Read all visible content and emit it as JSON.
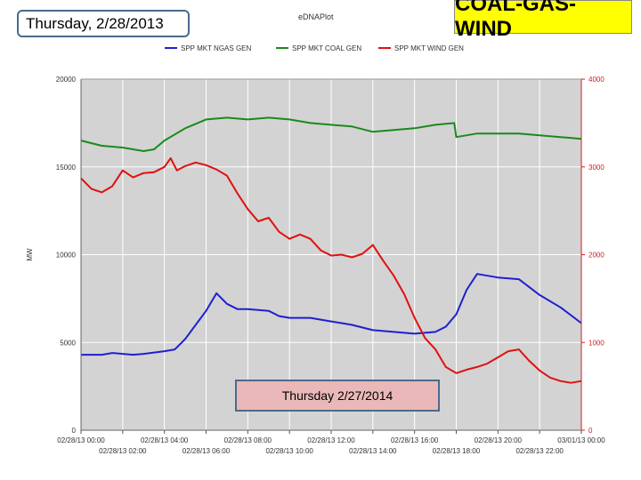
{
  "header": {
    "date_box": "Thursday, 2/28/2013",
    "app_title": "eDNAPlot",
    "banner": "COAL-GAS-WIND",
    "callout": "Thursday 2/27/2014"
  },
  "colors": {
    "plot_bg": "#d3d3d3",
    "gas": "#1f1fd0",
    "coal": "#1a8a1a",
    "wind": "#e01010",
    "right_axis": "#cc2222",
    "banner_bg": "#ffff00",
    "callout_bg": "#eab8b8"
  },
  "chart_data": {
    "type": "line",
    "title": "",
    "ylabel": "MW",
    "ylabel_right": "",
    "xlabel": "",
    "ylim": [
      0,
      20000
    ],
    "ylim_right": [
      0,
      4000
    ],
    "y_ticks": [
      0,
      5000,
      10000,
      15000,
      20000
    ],
    "y_ticks_right": [
      0,
      1000,
      2000,
      3000,
      4000
    ],
    "grid": true,
    "legend_position": "top",
    "x_range_hours": [
      0,
      24
    ],
    "x_ticks_row1": [
      {
        "h": 0,
        "label": "02/28/13 00:00"
      },
      {
        "h": 4,
        "label": "02/28/13 04:00"
      },
      {
        "h": 8,
        "label": "02/28/13 08:00"
      },
      {
        "h": 12,
        "label": "02/28/13 12:00"
      },
      {
        "h": 16,
        "label": "02/28/13 16:00"
      },
      {
        "h": 20,
        "label": "02/28/13 20:00"
      },
      {
        "h": 24,
        "label": "03/01/13 00:00"
      }
    ],
    "x_ticks_row2": [
      {
        "h": 2,
        "label": "02/28/13 02:00"
      },
      {
        "h": 6,
        "label": "02/28/13 06:00"
      },
      {
        "h": 10,
        "label": "02/28/13 10:00"
      },
      {
        "h": 14,
        "label": "02/28/13 14:00"
      },
      {
        "h": 18,
        "label": "02/28/13 18:00"
      },
      {
        "h": 22,
        "label": "02/28/13 22:00"
      }
    ],
    "series": [
      {
        "name": "SPP MKT NGAS GEN",
        "axis": "left",
        "color": "#1f1fd0",
        "x": [
          0,
          1,
          1.5,
          2,
          2.5,
          3,
          4,
          4.5,
          5,
          5.5,
          6,
          6.5,
          7,
          7.5,
          8,
          9,
          9.5,
          10,
          11,
          12,
          12.5,
          13,
          14,
          15,
          16,
          17,
          17.5,
          18,
          18.5,
          19,
          20,
          21,
          22,
          23,
          24
        ],
        "y": [
          4300,
          4300,
          4400,
          4350,
          4300,
          4350,
          4500,
          4600,
          5200,
          6000,
          6800,
          7800,
          7200,
          6900,
          6900,
          6800,
          6500,
          6400,
          6400,
          6200,
          6100,
          6000,
          5700,
          5600,
          5500,
          5600,
          5900,
          6600,
          8000,
          8900,
          8700,
          8600,
          7700,
          7000,
          6100
        ]
      },
      {
        "name": "SPP MKT COAL GEN",
        "axis": "left",
        "color": "#1a8a1a",
        "x": [
          0,
          1,
          2,
          3,
          3.5,
          4,
          5,
          6,
          7,
          8,
          9,
          10,
          11,
          12,
          13,
          14,
          15,
          16,
          17,
          17.9,
          18,
          19,
          20,
          21,
          22,
          23,
          24
        ],
        "y": [
          16500,
          16200,
          16100,
          15900,
          16000,
          16500,
          17200,
          17700,
          17800,
          17700,
          17800,
          17700,
          17500,
          17400,
          17300,
          17000,
          17100,
          17200,
          17400,
          17500,
          16700,
          16900,
          16900,
          16900,
          16800,
          16700,
          16600
        ]
      },
      {
        "name": "SPP MKT WIND GEN",
        "axis": "right",
        "color": "#e01010",
        "x": [
          0,
          0.5,
          1,
          1.5,
          2,
          2.5,
          3,
          3.5,
          4,
          4.3,
          4.6,
          5,
          5.5,
          6,
          6.5,
          7,
          7.5,
          8,
          8.5,
          9,
          9.5,
          10,
          10.5,
          11,
          11.5,
          12,
          12.5,
          13,
          13.5,
          14,
          14.5,
          15,
          15.5,
          16,
          16.5,
          17,
          17.5,
          18,
          18.5,
          19,
          19.5,
          20,
          20.5,
          21,
          21.5,
          22,
          22.5,
          23,
          23.5,
          24
        ],
        "y": [
          2870,
          2750,
          2710,
          2780,
          2960,
          2880,
          2930,
          2940,
          3000,
          3100,
          2960,
          3010,
          3050,
          3020,
          2970,
          2900,
          2700,
          2520,
          2380,
          2420,
          2260,
          2180,
          2230,
          2180,
          2050,
          1990,
          2000,
          1970,
          2010,
          2110,
          1930,
          1760,
          1550,
          1280,
          1050,
          920,
          720,
          650,
          690,
          720,
          760,
          830,
          900,
          920,
          790,
          680,
          600,
          560,
          540,
          560
        ]
      }
    ]
  }
}
